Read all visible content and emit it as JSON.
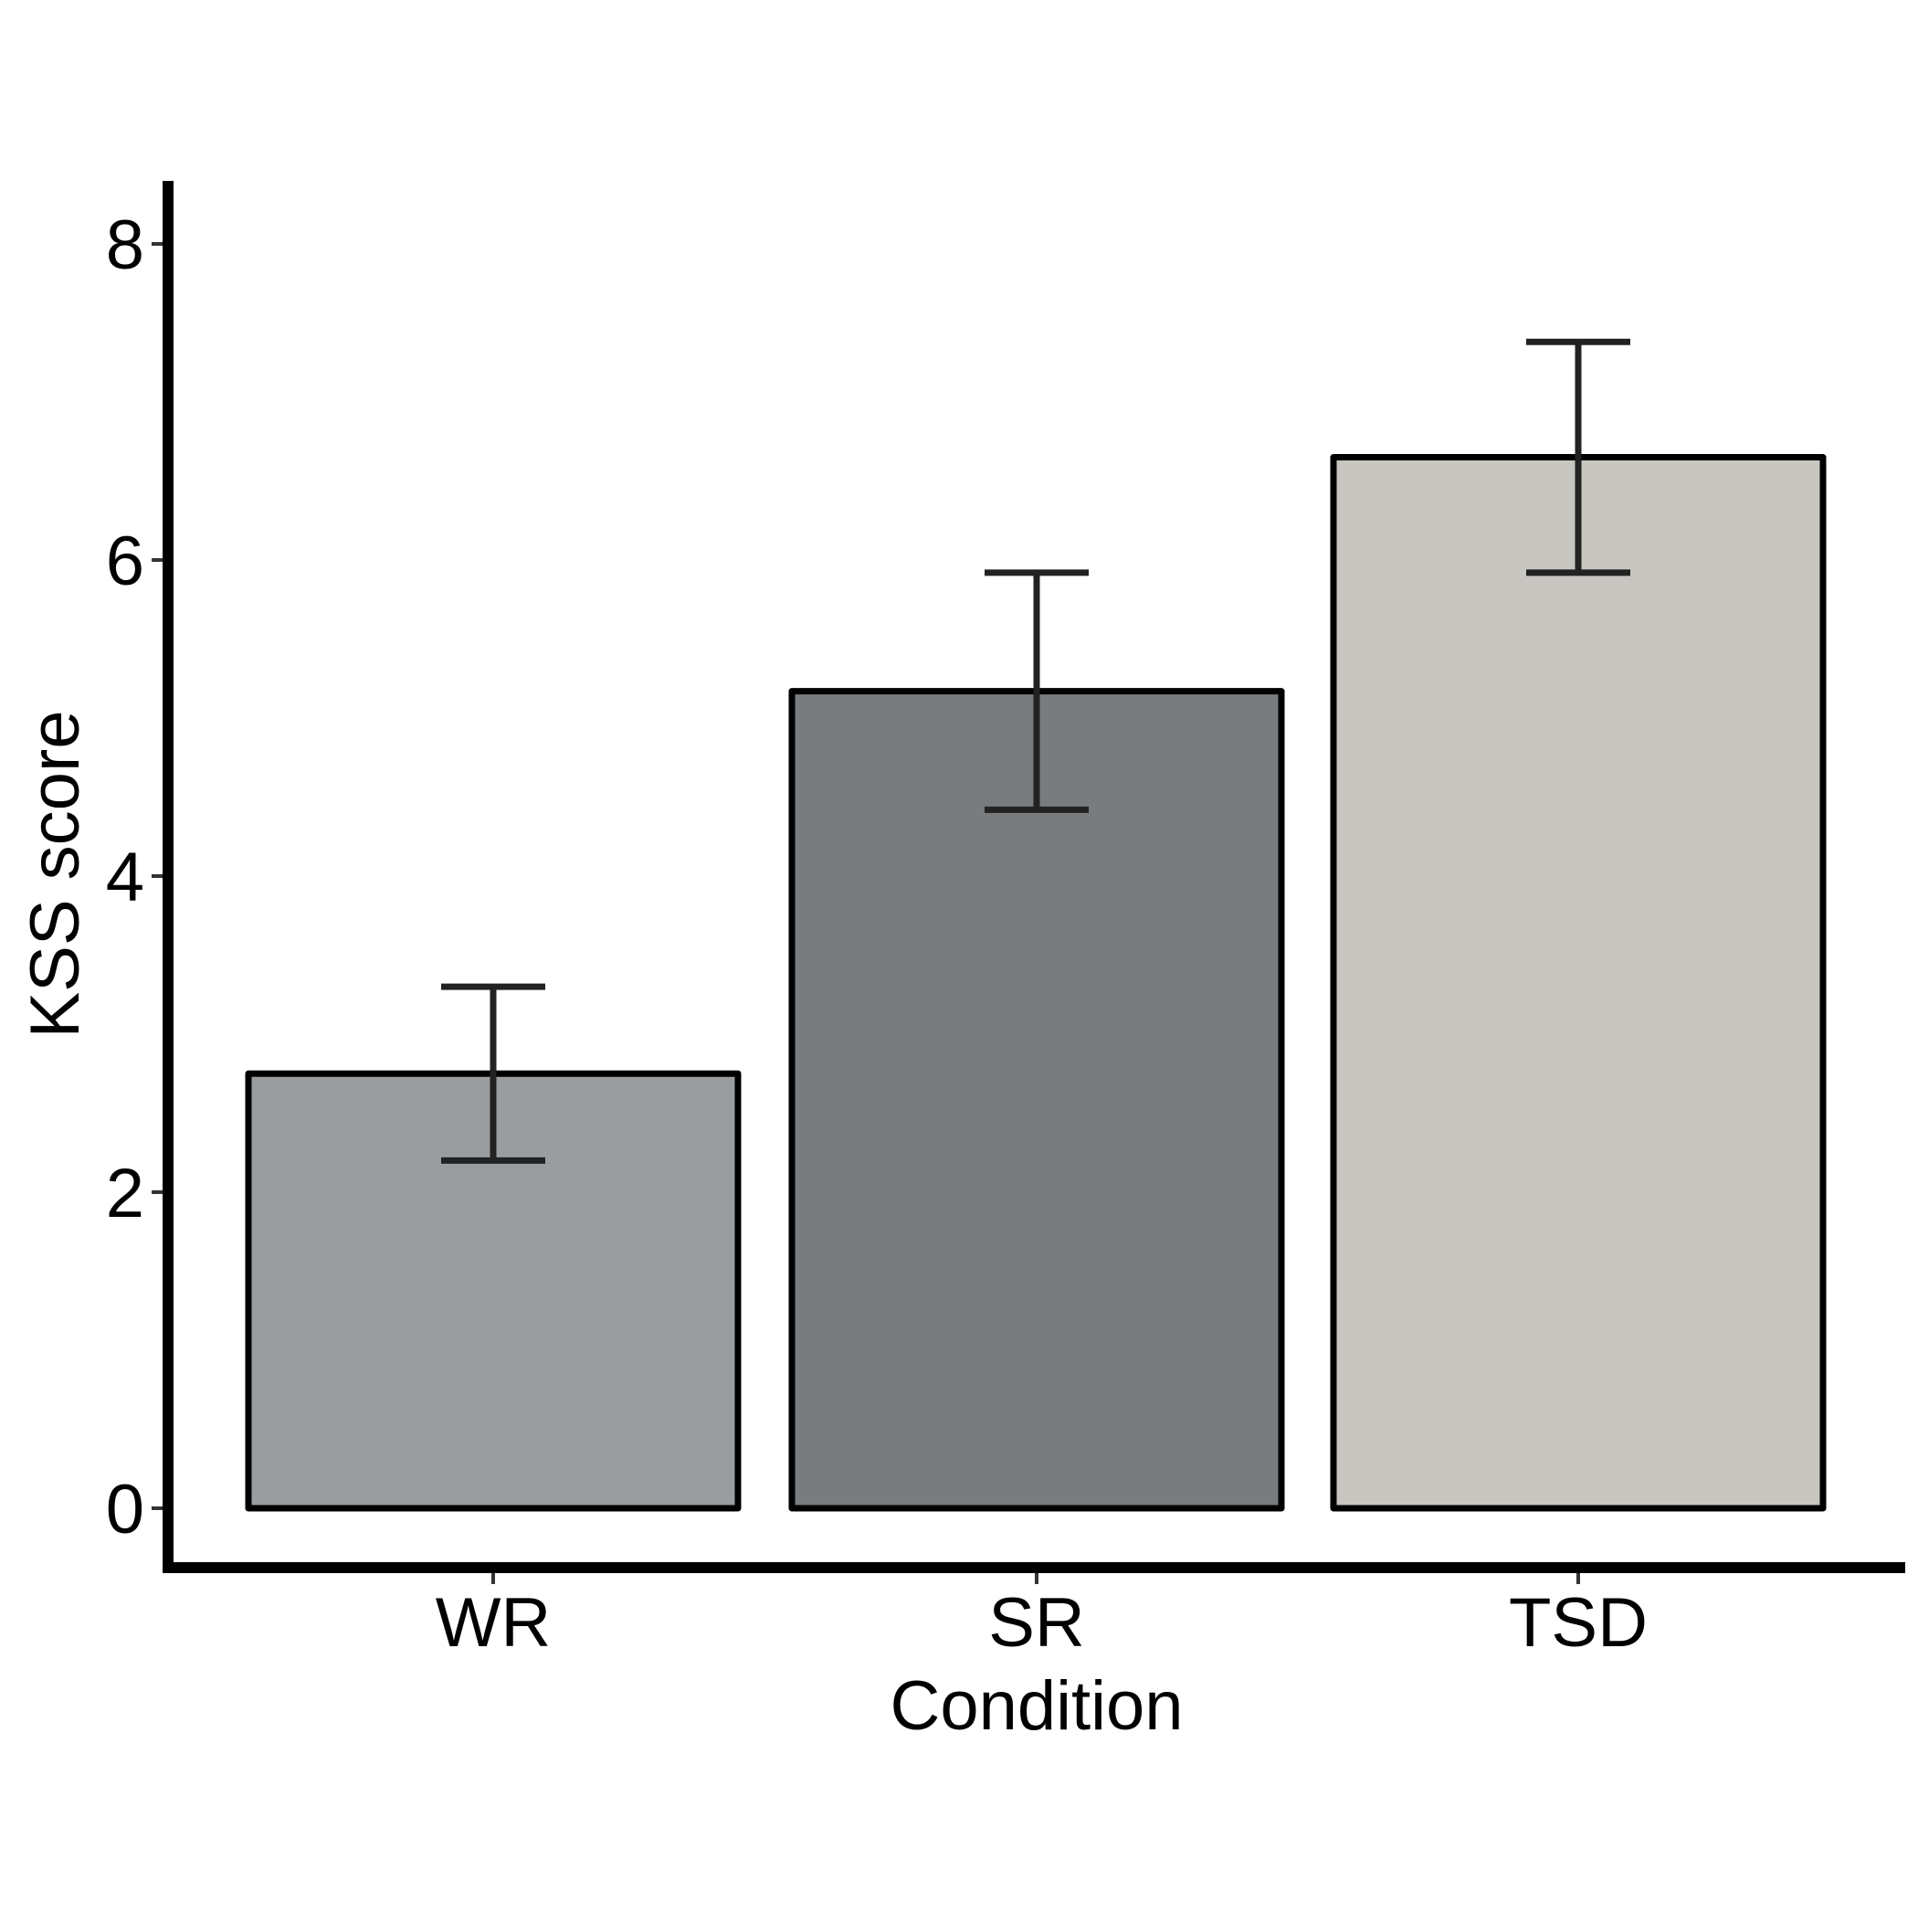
{
  "chart_data": {
    "type": "bar",
    "title": "",
    "xlabel": "Condition",
    "ylabel": "KSS score",
    "categories": [
      "WR",
      "SR",
      "TSD"
    ],
    "values": [
      2.75,
      5.17,
      6.65
    ],
    "error_bars": [
      {
        "lower": 2.2,
        "upper": 3.3
      },
      {
        "lower": 4.42,
        "upper": 5.92
      },
      {
        "lower": 5.92,
        "upper": 7.38
      }
    ],
    "bar_colors": [
      "#9a9d9f",
      "#797c7e",
      "#c7c6c1"
    ],
    "ylim": [
      -0.35,
      8.4
    ],
    "yticks": [
      0,
      2,
      4,
      6,
      8
    ],
    "ytick_labels": [
      "0",
      "2",
      "4",
      "6",
      "8"
    ],
    "grid": false,
    "legend": "none"
  }
}
